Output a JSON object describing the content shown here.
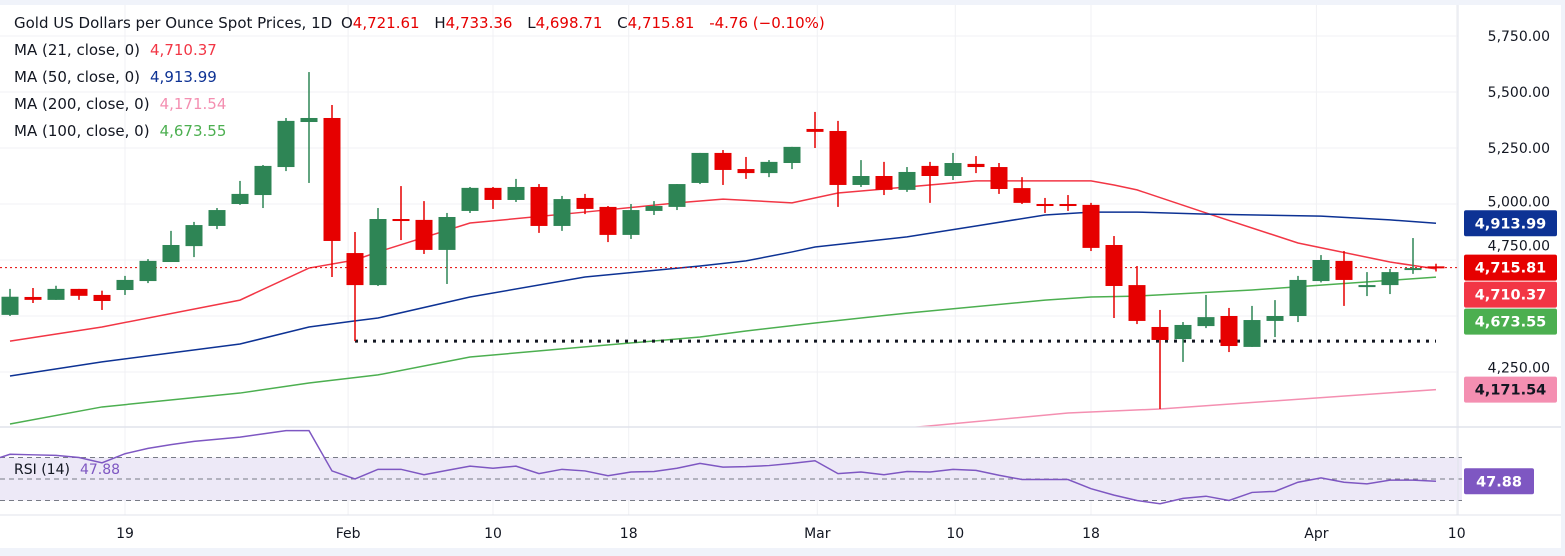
{
  "header": {
    "title": "Gold US Dollars per Ounce Spot Prices, 1D",
    "open_label": "O",
    "open": "4,721.61",
    "high_label": "H",
    "high": "4,733.36",
    "low_label": "L",
    "low": "4,698.71",
    "close_label": "C",
    "close": "4,715.81",
    "change": "-4.76 (−0.10%)"
  },
  "legend": [
    {
      "label": "MA (21, close, 0)",
      "value": "4,710.37",
      "color": "#f23645"
    },
    {
      "label": "MA (50, close, 0)",
      "value": "4,913.99",
      "color": "#0d3294"
    },
    {
      "label": "MA (200, close, 0)",
      "value": "4,171.54",
      "color": "#f48fb1"
    },
    {
      "label": "MA (100, close, 0)",
      "value": "4,673.55",
      "color": "#4caf50"
    }
  ],
  "rsi_legend": {
    "label": "RSI (14)",
    "value": "47.88",
    "color": "#7e57c2"
  },
  "price_tags": [
    {
      "value": "4,913.99",
      "bg": "#0d3294",
      "fg": "#ffffff"
    },
    {
      "value": "4,715.81",
      "bg": "#e60000",
      "fg": "#ffffff"
    },
    {
      "value": "4,710.37",
      "bg": "#f23645",
      "fg": "#ffffff"
    },
    {
      "value": "4,673.55",
      "bg": "#4caf50",
      "fg": "#ffffff"
    },
    {
      "value": "4,171.54",
      "bg": "#f48fb1",
      "fg": "#131722"
    },
    {
      "value": "47.88",
      "bg": "#7e57c2",
      "fg": "#ffffff"
    }
  ],
  "colors": {
    "up": "#2e8555",
    "down": "#e60000",
    "last_price_line": "#e60000",
    "support_line": "#131722",
    "rsi_band": "#ede9f7"
  },
  "chart_data": {
    "type": "candlestick",
    "interval": "1D",
    "x_tick_labels": [
      "19",
      "Feb",
      "10",
      "18",
      "Mar",
      "10",
      "18",
      "Apr",
      "10"
    ],
    "y_tick_labels": [
      "5,750.00",
      "5,500.00",
      "5,250.00",
      "5,000.00",
      "4,750.00",
      "4,250.00"
    ],
    "ylim": [
      3990,
      5785
    ],
    "grid": true,
    "candles": [
      [
        4505,
        4621,
        4500,
        4586
      ],
      [
        4585,
        4625,
        4558,
        4572
      ],
      [
        4572,
        4635,
        4572,
        4621
      ],
      [
        4621,
        4621,
        4572,
        4590
      ],
      [
        4594,
        4613,
        4527,
        4567
      ],
      [
        4616,
        4679,
        4594,
        4661
      ],
      [
        4656,
        4754,
        4647,
        4746
      ],
      [
        4741,
        4880,
        4741,
        4817
      ],
      [
        4812,
        4920,
        4763,
        4906
      ],
      [
        4902,
        4982,
        4888,
        4973
      ],
      [
        5000,
        5103,
        4996,
        5045
      ],
      [
        5040,
        5174,
        4982,
        5170
      ],
      [
        5165,
        5384,
        5147,
        5371
      ],
      [
        5366,
        5589,
        5094,
        5384
      ],
      [
        5384,
        5442,
        4674,
        4835
      ],
      [
        4781,
        4875,
        4388,
        4638
      ],
      [
        4638,
        4982,
        4634,
        4933
      ],
      [
        4933,
        5080,
        4839,
        4924
      ],
      [
        4929,
        5013,
        4777,
        4795
      ],
      [
        4795,
        4960,
        4643,
        4942
      ],
      [
        4969,
        5076,
        4960,
        5072
      ],
      [
        5072,
        5076,
        4978,
        5018
      ],
      [
        5018,
        5112,
        5009,
        5076
      ],
      [
        5076,
        5089,
        4871,
        4902
      ],
      [
        4902,
        5036,
        4880,
        5022
      ],
      [
        5027,
        5045,
        4955,
        4978
      ],
      [
        4987,
        4991,
        4830,
        4862
      ],
      [
        4862,
        5000,
        4844,
        4973
      ],
      [
        4969,
        5013,
        4951,
        4991
      ],
      [
        4987,
        5089,
        4973,
        5089
      ],
      [
        5094,
        5228,
        5089,
        5228
      ],
      [
        5228,
        5241,
        5085,
        5152
      ],
      [
        5156,
        5210,
        5112,
        5138
      ],
      [
        5138,
        5196,
        5120,
        5188
      ],
      [
        5183,
        5255,
        5156,
        5255
      ],
      [
        5335,
        5411,
        5250,
        5322
      ],
      [
        5326,
        5371,
        4987,
        5085
      ],
      [
        5085,
        5196,
        5076,
        5125
      ],
      [
        5125,
        5188,
        5040,
        5063
      ],
      [
        5063,
        5165,
        5054,
        5143
      ],
      [
        5170,
        5188,
        5005,
        5125
      ],
      [
        5125,
        5228,
        5107,
        5183
      ],
      [
        5179,
        5214,
        5138,
        5165
      ],
      [
        5165,
        5183,
        5045,
        5067
      ],
      [
        5071,
        5120,
        5000,
        5005
      ],
      [
        5000,
        5027,
        4960,
        4991
      ],
      [
        5000,
        5040,
        4969,
        4991
      ],
      [
        4996,
        5005,
        4790,
        4804
      ],
      [
        4817,
        4857,
        4491,
        4634
      ],
      [
        4638,
        4723,
        4464,
        4478
      ],
      [
        4451,
        4527,
        4085,
        4393
      ],
      [
        4397,
        4473,
        4295,
        4460
      ],
      [
        4455,
        4594,
        4446,
        4495
      ],
      [
        4500,
        4536,
        4339,
        4366
      ],
      [
        4362,
        4545,
        4362,
        4482
      ],
      [
        4478,
        4571,
        4406,
        4500
      ],
      [
        4500,
        4679,
        4473,
        4661
      ],
      [
        4656,
        4772,
        4650,
        4750
      ],
      [
        4746,
        4790,
        4545,
        4661
      ],
      [
        4634,
        4696,
        4589,
        4638
      ],
      [
        4638,
        4710,
        4598,
        4696
      ],
      [
        4710,
        4848,
        4688,
        4714
      ],
      [
        4721.61,
        4733.36,
        4698.71,
        4715.81
      ]
    ],
    "candle_fields": [
      "open",
      "high",
      "low",
      "close"
    ],
    "moving_averages": [
      {
        "name": "MA (21, close, 0)",
        "color": "#f23645",
        "points": [
          [
            0,
            4388
          ],
          [
            4,
            4451
          ],
          [
            10,
            4571
          ],
          [
            13,
            4714
          ],
          [
            15,
            4750
          ],
          [
            16,
            4786
          ],
          [
            20,
            4915
          ],
          [
            25,
            4964
          ],
          [
            29,
            5005
          ],
          [
            31,
            5022
          ],
          [
            34,
            5005
          ],
          [
            36,
            5049
          ],
          [
            39,
            5076
          ],
          [
            42,
            5103
          ],
          [
            45,
            5103
          ],
          [
            47,
            5103
          ],
          [
            48,
            5085
          ],
          [
            49,
            5063
          ],
          [
            52,
            4960
          ],
          [
            56,
            4826
          ],
          [
            60,
            4741
          ],
          [
            62,
            4710.37
          ]
        ]
      },
      {
        "name": "MA (50, close, 0)",
        "color": "#0d3294",
        "points": [
          [
            0,
            4232
          ],
          [
            4,
            4295
          ],
          [
            10,
            4375
          ],
          [
            13,
            4451
          ],
          [
            15,
            4478
          ],
          [
            16,
            4491
          ],
          [
            20,
            4585
          ],
          [
            25,
            4674
          ],
          [
            30,
            4723
          ],
          [
            32,
            4746
          ],
          [
            34,
            4786
          ],
          [
            35,
            4808
          ],
          [
            39,
            4853
          ],
          [
            42,
            4902
          ],
          [
            45,
            4951
          ],
          [
            47,
            4964
          ],
          [
            49,
            4964
          ],
          [
            52,
            4955
          ],
          [
            57,
            4946
          ],
          [
            60,
            4929
          ],
          [
            62,
            4913.99
          ]
        ]
      },
      {
        "name": "MA (100, close, 0)",
        "color": "#4caf50",
        "points": [
          [
            0,
            4018
          ],
          [
            4,
            4094
          ],
          [
            10,
            4156
          ],
          [
            13,
            4201
          ],
          [
            16,
            4237
          ],
          [
            20,
            4317
          ],
          [
            25,
            4362
          ],
          [
            30,
            4406
          ],
          [
            32,
            4433
          ],
          [
            35,
            4469
          ],
          [
            39,
            4513
          ],
          [
            45,
            4571
          ],
          [
            47,
            4585
          ],
          [
            49,
            4589
          ],
          [
            54,
            4616
          ],
          [
            57,
            4638
          ],
          [
            62,
            4673.55
          ]
        ]
      },
      {
        "name": "MA (200, close, 0)",
        "color": "#f48fb1",
        "points": [
          [
            39,
            4000
          ],
          [
            46,
            4067
          ],
          [
            50,
            4085
          ],
          [
            62,
            4171.54
          ]
        ]
      }
    ],
    "last_price": 4715.81,
    "support_level": 4388,
    "rsi": {
      "name": "RSI (14)",
      "levels": [
        70,
        50,
        30
      ],
      "values": [
        73,
        72.5,
        72,
        70,
        65,
        73.5,
        78.5,
        82,
        85,
        87,
        89,
        92,
        95,
        95,
        57.5,
        50,
        59,
        59,
        54,
        58,
        62,
        60,
        62,
        55,
        59,
        57.5,
        53,
        56.5,
        57,
        60,
        64.5,
        61,
        61.5,
        62.5,
        64.5,
        67,
        55,
        56.5,
        54,
        57,
        56.5,
        59,
        58,
        53.5,
        49.5,
        49.5,
        49.5,
        41,
        35,
        30,
        27,
        32,
        34,
        30,
        37.5,
        38.5,
        47,
        51,
        47,
        45.5,
        49,
        49,
        47.88
      ]
    }
  }
}
